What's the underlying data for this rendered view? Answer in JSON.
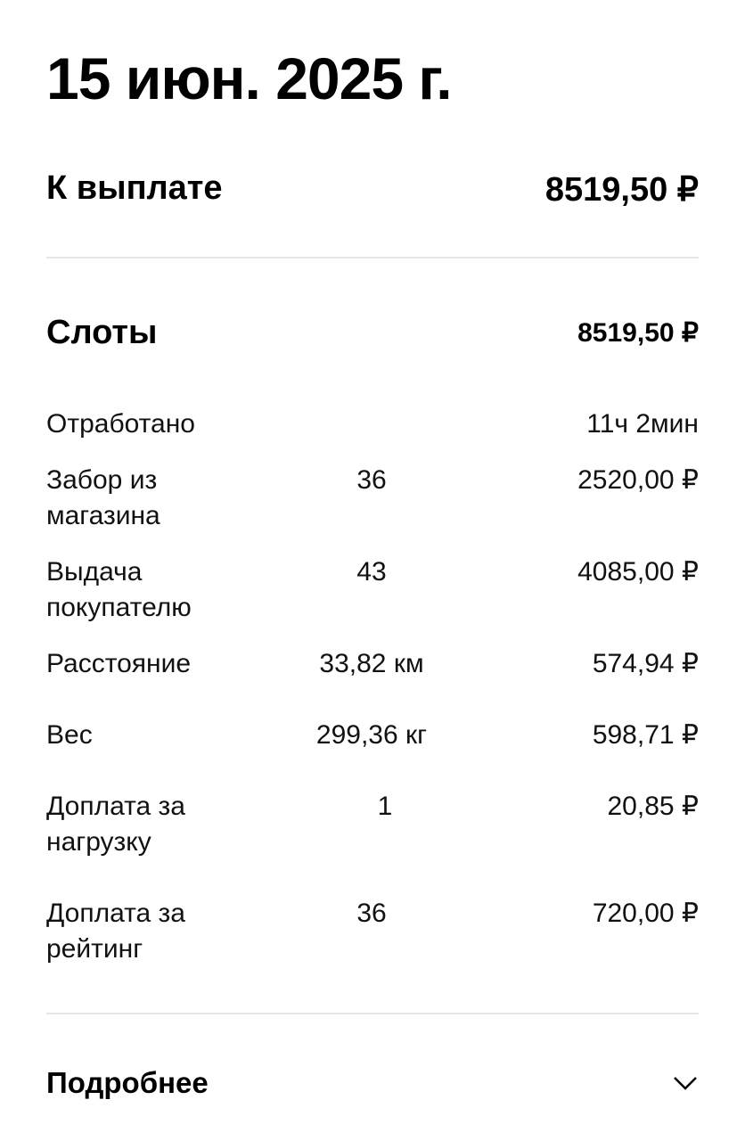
{
  "date": "15 июн. 2025 г.",
  "payout": {
    "label": "К выплате",
    "amount": "8519,50 ₽"
  },
  "slots": {
    "label": "Слоты",
    "amount": "8519,50 ₽"
  },
  "items": [
    {
      "label": "Отработано",
      "qty": "",
      "amount": "11ч 2мин"
    },
    {
      "label": "Забор из магазина",
      "qty": "36",
      "amount": "2520,00 ₽"
    },
    {
      "label": "Выдача покупателю",
      "qty": "43",
      "amount": "4085,00 ₽"
    },
    {
      "label": "Расстояние",
      "qty": "33,82 км",
      "amount": "574,94 ₽"
    },
    {
      "label": "Вес",
      "qty": "299,36 кг",
      "amount": "598,71 ₽"
    },
    {
      "label": "Доплата за нагрузку",
      "qty": "1",
      "amount": "20,85 ₽"
    },
    {
      "label": "Доплата за рейтинг",
      "qty": "36",
      "amount": "720,00 ₽"
    }
  ],
  "details": {
    "label": "Подробнее",
    "icon": "chevron-down-icon"
  }
}
